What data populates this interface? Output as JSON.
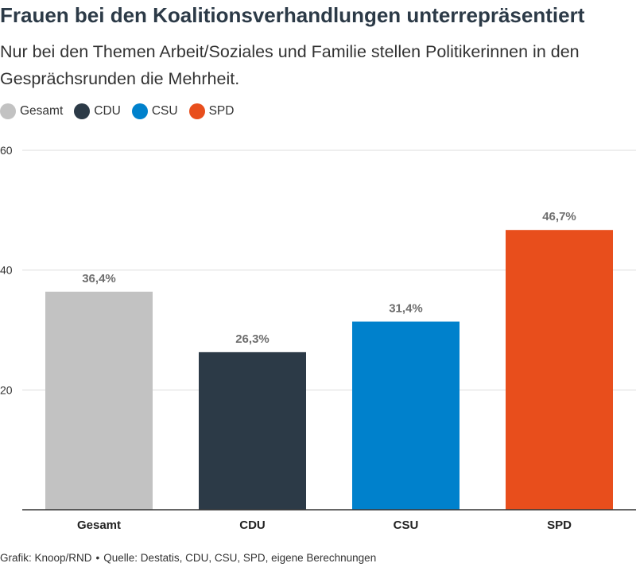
{
  "header": {
    "title": "Frauen bei den Koalitionsverhandlungen unterrepräsentiert",
    "subtitle": "Nur bei den Themen Arbeit/Soziales und Familie stellen Politikerinnen in den Gesprächsrunden die Mehrheit."
  },
  "legend": {
    "items": [
      {
        "label": "Gesamt",
        "color": "#c2c2c2"
      },
      {
        "label": "CDU",
        "color": "#2c3a47"
      },
      {
        "label": "CSU",
        "color": "#0081cc"
      },
      {
        "label": "SPD",
        "color": "#e84e1c"
      }
    ]
  },
  "chart_data": {
    "type": "bar",
    "categories": [
      "Gesamt",
      "CDU",
      "CSU",
      "SPD"
    ],
    "values": [
      36.4,
      26.3,
      31.4,
      46.7
    ],
    "value_labels": [
      "36,4%",
      "26,3%",
      "31,4%",
      "46,7%"
    ],
    "colors": [
      "#c2c2c2",
      "#2c3a47",
      "#0081cc",
      "#e84e1c"
    ],
    "title": "Frauen bei den Koalitionsverhandlungen unterrepräsentiert",
    "subtitle": "Nur bei den Themen Arbeit/Soziales und Familie stellen Politikerinnen in den Gesprächsrunden die Mehrheit.",
    "xlabel": "",
    "ylabel": "",
    "ylim": [
      0,
      60
    ],
    "yticks": [
      20,
      40,
      60
    ],
    "grid": true,
    "legend_position": "top-left"
  },
  "footer": {
    "credit": "Grafik: Knoop/RND",
    "separator": "•",
    "source": "Quelle: Destatis, CDU, CSU, SPD, eigene Berechnungen"
  }
}
